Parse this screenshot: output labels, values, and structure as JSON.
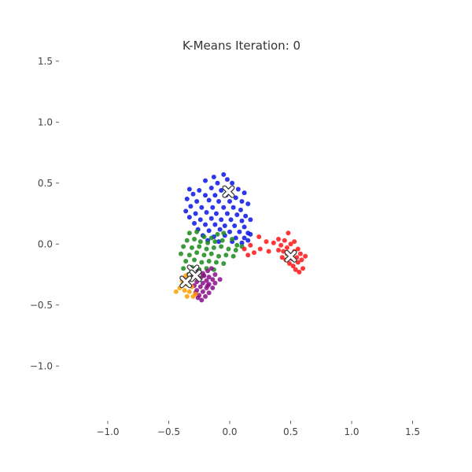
{
  "chart_data": {
    "type": "scatter",
    "title": "K-Means Iteration: 0",
    "xlabel": "",
    "ylabel": "",
    "xlim": [
      -1.4,
      1.6
    ],
    "ylim": [
      -1.45,
      1.55
    ],
    "xticks": [
      -1.0,
      -0.5,
      0.0,
      0.5,
      1.0,
      1.5
    ],
    "yticks": [
      1.5,
      1.0,
      0.5,
      0.0,
      -0.5,
      -1.0
    ],
    "xtick_labels": [
      "−1.0",
      "−0.5",
      "0.0",
      "0.5",
      "1.0",
      "1.5"
    ],
    "ytick_labels": [
      "1.5",
      "1.0",
      "0.5",
      "0.0",
      "−0.5",
      "−1.0"
    ],
    "grid": false,
    "legend": "none",
    "centroid_marker": "white-x",
    "series": [
      {
        "color": "#0a14e6",
        "points": [
          [
            -0.05,
            0.57
          ],
          [
            -0.13,
            0.55
          ],
          [
            -0.02,
            0.53
          ],
          [
            -0.2,
            0.52
          ],
          [
            -0.1,
            0.5
          ],
          [
            0.02,
            0.5
          ],
          [
            -0.33,
            0.45
          ],
          [
            -0.25,
            0.44
          ],
          [
            -0.15,
            0.46
          ],
          [
            -0.07,
            0.44
          ],
          [
            0.07,
            0.45
          ],
          [
            0.12,
            0.42
          ],
          [
            -0.3,
            0.41
          ],
          [
            -0.2,
            0.4
          ],
          [
            -0.12,
            0.4
          ],
          [
            -0.03,
            0.4
          ],
          [
            0.05,
            0.38
          ],
          [
            0.1,
            0.35
          ],
          [
            -0.35,
            0.37
          ],
          [
            -0.27,
            0.35
          ],
          [
            -0.17,
            0.36
          ],
          [
            -0.09,
            0.35
          ],
          [
            0.0,
            0.35
          ],
          [
            0.15,
            0.33
          ],
          [
            -0.32,
            0.31
          ],
          [
            -0.23,
            0.3
          ],
          [
            -0.14,
            0.3
          ],
          [
            -0.05,
            0.3
          ],
          [
            0.03,
            0.3
          ],
          [
            0.09,
            0.28
          ],
          [
            -0.36,
            0.27
          ],
          [
            -0.28,
            0.25
          ],
          [
            -0.19,
            0.26
          ],
          [
            -0.11,
            0.25
          ],
          [
            -0.02,
            0.25
          ],
          [
            0.06,
            0.24
          ],
          [
            0.13,
            0.23
          ],
          [
            -0.33,
            0.22
          ],
          [
            -0.24,
            0.2
          ],
          [
            -0.15,
            0.21
          ],
          [
            -0.07,
            0.2
          ],
          [
            0.01,
            0.2
          ],
          [
            0.1,
            0.19
          ],
          [
            0.17,
            0.2
          ],
          [
            -0.29,
            0.17
          ],
          [
            -0.2,
            0.16
          ],
          [
            -0.12,
            0.16
          ],
          [
            -0.04,
            0.15
          ],
          [
            0.04,
            0.15
          ],
          [
            0.12,
            0.14
          ],
          [
            -0.26,
            0.12
          ],
          [
            -0.17,
            0.11
          ],
          [
            -0.08,
            0.12
          ],
          [
            0.0,
            0.1
          ],
          [
            0.08,
            0.1
          ],
          [
            0.15,
            0.09
          ],
          [
            -0.22,
            0.07
          ],
          [
            -0.13,
            0.06
          ],
          [
            -0.04,
            0.07
          ],
          [
            0.05,
            0.05
          ],
          [
            0.12,
            0.05
          ],
          [
            0.17,
            0.08
          ],
          [
            -0.18,
            0.03
          ],
          [
            -0.09,
            0.02
          ],
          [
            0.02,
            0.02
          ],
          [
            0.1,
            0.01
          ],
          [
            0.15,
            0.03
          ]
        ]
      },
      {
        "color": "#1a8a1a",
        "points": [
          [
            -0.33,
            0.09
          ],
          [
            -0.27,
            0.1
          ],
          [
            -0.21,
            0.06
          ],
          [
            -0.15,
            0.05
          ],
          [
            -0.1,
            0.08
          ],
          [
            -0.05,
            0.09
          ],
          [
            -0.35,
            0.03
          ],
          [
            -0.29,
            0.04
          ],
          [
            -0.24,
            0.02
          ],
          [
            -0.18,
            0.01
          ],
          [
            -0.12,
            0.02
          ],
          [
            -0.06,
            0.03
          ],
          [
            0.02,
            0.04
          ],
          [
            0.06,
            -0.01
          ],
          [
            -0.38,
            -0.02
          ],
          [
            -0.31,
            -0.03
          ],
          [
            -0.25,
            -0.02
          ],
          [
            -0.19,
            -0.04
          ],
          [
            -0.13,
            -0.03
          ],
          [
            -0.07,
            -0.02
          ],
          [
            -0.01,
            -0.04
          ],
          [
            0.05,
            -0.05
          ],
          [
            0.1,
            -0.02
          ],
          [
            -0.4,
            -0.08
          ],
          [
            -0.33,
            -0.09
          ],
          [
            -0.27,
            -0.07
          ],
          [
            -0.21,
            -0.09
          ],
          [
            -0.15,
            -0.08
          ],
          [
            -0.09,
            -0.1
          ],
          [
            -0.03,
            -0.09
          ],
          [
            0.03,
            -0.1
          ],
          [
            -0.36,
            -0.14
          ],
          [
            -0.29,
            -0.13
          ],
          [
            -0.23,
            -0.15
          ],
          [
            -0.17,
            -0.14
          ],
          [
            -0.11,
            -0.15
          ],
          [
            -0.05,
            -0.16
          ],
          [
            -0.38,
            -0.2
          ],
          [
            -0.31,
            -0.19
          ],
          [
            -0.25,
            -0.21
          ],
          [
            -0.19,
            -0.2
          ],
          [
            -0.13,
            -0.21
          ],
          [
            -0.34,
            -0.25
          ],
          [
            -0.28,
            -0.26
          ],
          [
            -0.22,
            -0.26
          ]
        ]
      },
      {
        "color": "#ff1414",
        "points": [
          [
            0.12,
            -0.04
          ],
          [
            0.17,
            -0.01
          ],
          [
            0.15,
            -0.09
          ],
          [
            0.24,
            0.06
          ],
          [
            0.25,
            -0.04
          ],
          [
            0.3,
            0.02
          ],
          [
            0.32,
            -0.06
          ],
          [
            0.2,
            -0.07
          ],
          [
            0.36,
            0.01
          ],
          [
            0.4,
            0.04
          ],
          [
            0.42,
            -0.01
          ],
          [
            0.45,
            0.03
          ],
          [
            0.48,
            0.09
          ],
          [
            0.4,
            -0.05
          ],
          [
            0.44,
            -0.06
          ],
          [
            0.47,
            -0.03
          ],
          [
            0.5,
            0.0
          ],
          [
            0.53,
            0.02
          ],
          [
            0.43,
            -0.11
          ],
          [
            0.46,
            -0.13
          ],
          [
            0.5,
            -0.09
          ],
          [
            0.53,
            -0.06
          ],
          [
            0.56,
            -0.04
          ],
          [
            0.55,
            -0.11
          ],
          [
            0.58,
            -0.08
          ],
          [
            0.49,
            -0.16
          ],
          [
            0.52,
            -0.18
          ],
          [
            0.56,
            -0.15
          ],
          [
            0.59,
            -0.13
          ],
          [
            0.6,
            -0.2
          ],
          [
            0.54,
            -0.21
          ],
          [
            0.62,
            -0.1
          ],
          [
            0.57,
            -0.23
          ],
          [
            0.51,
            -0.12
          ],
          [
            0.47,
            -0.08
          ]
        ]
      },
      {
        "color": "#8a0e8a",
        "points": [
          [
            -0.15,
            -0.2
          ],
          [
            -0.12,
            -0.25
          ],
          [
            -0.18,
            -0.22
          ],
          [
            -0.22,
            -0.24
          ],
          [
            -0.17,
            -0.27
          ],
          [
            -0.26,
            -0.23
          ],
          [
            -0.3,
            -0.25
          ],
          [
            -0.24,
            -0.28
          ],
          [
            -0.19,
            -0.3
          ],
          [
            -0.14,
            -0.29
          ],
          [
            -0.08,
            -0.29
          ],
          [
            -0.32,
            -0.29
          ],
          [
            -0.27,
            -0.31
          ],
          [
            -0.22,
            -0.32
          ],
          [
            -0.17,
            -0.33
          ],
          [
            -0.12,
            -0.32
          ],
          [
            -0.29,
            -0.34
          ],
          [
            -0.24,
            -0.35
          ],
          [
            -0.19,
            -0.36
          ],
          [
            -0.14,
            -0.36
          ],
          [
            -0.27,
            -0.38
          ],
          [
            -0.22,
            -0.39
          ],
          [
            -0.17,
            -0.4
          ],
          [
            -0.25,
            -0.42
          ],
          [
            -0.2,
            -0.43
          ],
          [
            -0.23,
            -0.46
          ],
          [
            -0.28,
            -0.4
          ],
          [
            -0.18,
            -0.34
          ],
          [
            -0.21,
            -0.26
          ],
          [
            -0.26,
            -0.44
          ]
        ]
      },
      {
        "color": "#ff9e00",
        "points": [
          [
            -0.36,
            -0.26
          ],
          [
            -0.39,
            -0.3
          ],
          [
            -0.35,
            -0.33
          ],
          [
            -0.31,
            -0.35
          ],
          [
            -0.41,
            -0.36
          ],
          [
            -0.44,
            -0.39
          ],
          [
            -0.37,
            -0.38
          ],
          [
            -0.33,
            -0.39
          ],
          [
            -0.35,
            -0.43
          ],
          [
            -0.3,
            -0.43
          ],
          [
            -0.28,
            -0.41
          ],
          [
            -0.38,
            -0.32
          ]
        ]
      }
    ],
    "centroids": [
      [
        -0.01,
        0.43
      ],
      [
        0.5,
        -0.1
      ],
      [
        -0.3,
        -0.22
      ],
      [
        -0.28,
        -0.26
      ],
      [
        -0.36,
        -0.31
      ]
    ]
  }
}
